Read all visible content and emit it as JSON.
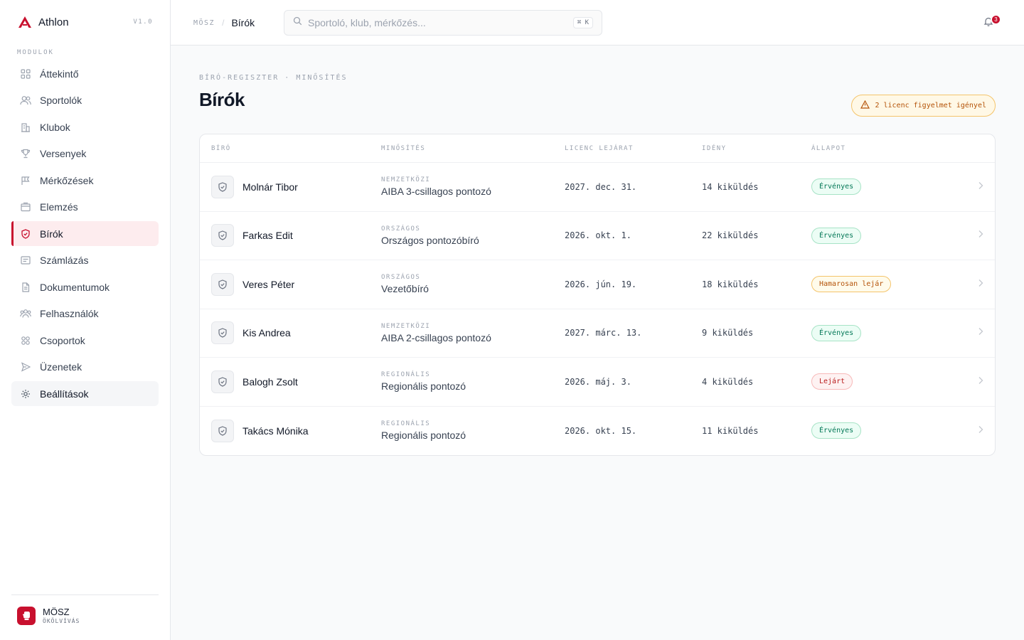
{
  "app": {
    "name": "Athlon",
    "version": "V1.0"
  },
  "sidebar": {
    "section_label": "MODULOK",
    "items": [
      {
        "label": "Áttekintő",
        "icon": "grid-icon"
      },
      {
        "label": "Sportolók",
        "icon": "users-icon"
      },
      {
        "label": "Klubok",
        "icon": "building-icon"
      },
      {
        "label": "Versenyek",
        "icon": "trophy-icon"
      },
      {
        "label": "Mérkőzések",
        "icon": "flag-icon"
      },
      {
        "label": "Elemzés",
        "icon": "chart-icon"
      },
      {
        "label": "Bírók",
        "icon": "shield-icon",
        "active": true
      },
      {
        "label": "Számlázás",
        "icon": "receipt-icon"
      },
      {
        "label": "Dokumentumok",
        "icon": "document-icon"
      },
      {
        "label": "Felhasználók",
        "icon": "user-group-icon"
      },
      {
        "label": "Csoportok",
        "icon": "groups-icon"
      },
      {
        "label": "Üzenetek",
        "icon": "send-icon"
      },
      {
        "label": "Beállítások",
        "icon": "gear-icon"
      }
    ],
    "org": {
      "name": "MÖSZ",
      "sub": "ÖKÖLVÍVÁS"
    }
  },
  "topbar": {
    "breadcrumb_root": "MÖSZ",
    "breadcrumb_sep": "/",
    "breadcrumb_current": "Bírók",
    "search_placeholder": "Sportoló, klub, mérkőzés...",
    "search_shortcut": "⌘ K",
    "notification_count": "3"
  },
  "page": {
    "eyebrow": "BÍRÓ-REGISZTER · MINŐSÍTÉS",
    "title": "Bírók",
    "alert": "2 licenc figyelmet igényel"
  },
  "table": {
    "headers": [
      "BÍRÓ",
      "MINŐSÍTÉS",
      "LICENC LEJÁRAT",
      "IDÉNY",
      "ÁLLAPOT"
    ],
    "rows": [
      {
        "name": "Molnár Tibor",
        "level": "NEMZETKÖZI",
        "qualification": "AIBA 3-csillagos pontozó",
        "expiry": "2027. dec. 31.",
        "season": "14 kiküldés",
        "status": "Érvényes",
        "status_type": "valid"
      },
      {
        "name": "Farkas Edit",
        "level": "ORSZÁGOS",
        "qualification": "Országos pontozóbíró",
        "expiry": "2026. okt. 1.",
        "season": "22 kiküldés",
        "status": "Érvényes",
        "status_type": "valid"
      },
      {
        "name": "Veres Péter",
        "level": "ORSZÁGOS",
        "qualification": "Vezetőbíró",
        "expiry": "2026. jún. 19.",
        "season": "18 kiküldés",
        "status": "Hamarosan lejár",
        "status_type": "soon"
      },
      {
        "name": "Kis Andrea",
        "level": "NEMZETKÖZI",
        "qualification": "AIBA 2-csillagos pontozó",
        "expiry": "2027. márc. 13.",
        "season": "9 kiküldés",
        "status": "Érvényes",
        "status_type": "valid"
      },
      {
        "name": "Balogh Zsolt",
        "level": "REGIONÁLIS",
        "qualification": "Regionális pontozó",
        "expiry": "2026. máj. 3.",
        "season": "4 kiküldés",
        "status": "Lejárt",
        "status_type": "expired"
      },
      {
        "name": "Takács Mónika",
        "level": "REGIONÁLIS",
        "qualification": "Regionális pontozó",
        "expiry": "2026. okt. 15.",
        "season": "11 kiküldés",
        "status": "Érvényes",
        "status_type": "valid"
      }
    ]
  },
  "colors": {
    "accent": "#c8102e",
    "valid": "#047857",
    "warning": "#b45309",
    "danger": "#b91c1c"
  }
}
